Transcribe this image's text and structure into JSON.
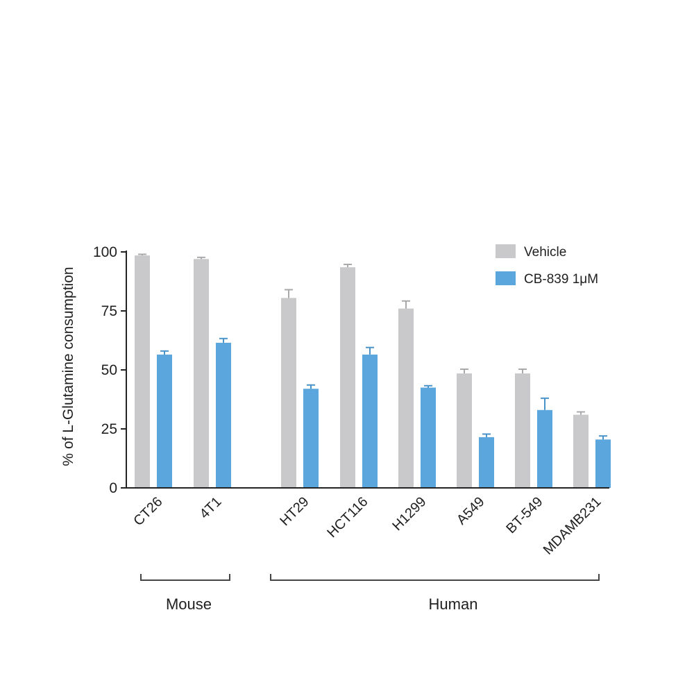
{
  "chart_data": {
    "type": "bar",
    "ylabel": "% of L-Glutamine consumption",
    "ylim": [
      0,
      100
    ],
    "yticks": [
      "0",
      "25",
      "50",
      "75",
      "100"
    ],
    "categories": [
      "CT26",
      "4T1",
      "HT29",
      "HCT116",
      "H1299",
      "A549",
      "BT-549",
      "MDAMB231"
    ],
    "series": [
      {
        "name": "Vehicle",
        "color": "#c9c9cb",
        "values": [
          98.5,
          97,
          80.5,
          93.5,
          76,
          48.5,
          48.5,
          31
        ],
        "errors": [
          0.5,
          0.7,
          3.5,
          1.2,
          3.2,
          1.8,
          1.8,
          1.2
        ]
      },
      {
        "name": "CB-839 1μM",
        "color": "#5aa6dd",
        "values": [
          56.5,
          61.5,
          42,
          56.5,
          42.5,
          21.5,
          33,
          20.5
        ],
        "errors": [
          1.5,
          1.8,
          1.6,
          3.0,
          0.8,
          1.3,
          5.0,
          1.5
        ]
      }
    ],
    "legend": "top-right",
    "groups": [
      {
        "label": "Mouse",
        "categories": [
          "CT26",
          "4T1"
        ]
      },
      {
        "label": "Human",
        "categories": [
          "HT29",
          "HCT116",
          "H1299",
          "A549",
          "BT-549",
          "MDAMB231"
        ]
      }
    ]
  }
}
